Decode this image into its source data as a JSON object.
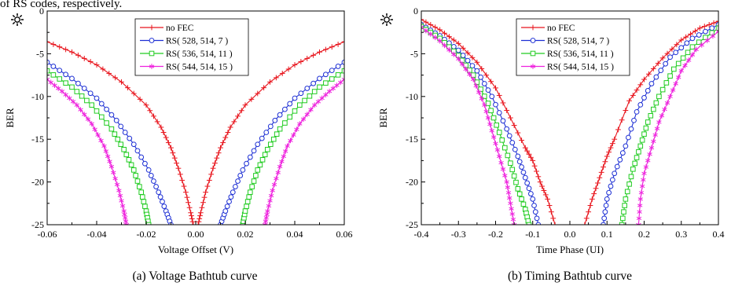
{
  "top_text": "of RS codes, respectively.",
  "chart_data": [
    {
      "type": "line",
      "caption": "(a)   Voltage Bathtub curve",
      "xlabel": "Voltage Offset (V)",
      "ylabel": "BER",
      "xlim": [
        -0.06,
        0.06
      ],
      "ylim": [
        -25,
        0
      ],
      "xticks": [
        "-0.06",
        "-0.04",
        "-0.02",
        "0.00",
        "0.02",
        "0.04",
        "0.06"
      ],
      "xtick_values": [
        -0.06,
        -0.04,
        -0.02,
        0.0,
        0.02,
        0.04,
        0.06
      ],
      "yticks": [
        "0",
        "-5",
        "-10",
        "-15",
        "-20",
        "-25"
      ],
      "ytick_values": [
        0,
        -5,
        -10,
        -15,
        -20,
        -25
      ],
      "grid": false,
      "legend_position": "top-center",
      "series": [
        {
          "name": "no FEC",
          "color": "#e8141c",
          "marker": "plus",
          "left": [
            [
              -0.06,
              -3.6
            ],
            [
              -0.05,
              -4.8
            ],
            [
              -0.04,
              -6.3
            ],
            [
              -0.03,
              -8.3
            ],
            [
              -0.02,
              -11.0
            ],
            [
              -0.014,
              -13.6
            ],
            [
              -0.01,
              -16.0
            ],
            [
              -0.007,
              -18.4
            ],
            [
              -0.004,
              -21.2
            ],
            [
              -0.002,
              -23.6
            ],
            [
              -0.001,
              -25.0
            ]
          ],
          "right": [
            [
              0.001,
              -25.0
            ],
            [
              0.002,
              -23.6
            ],
            [
              0.004,
              -21.2
            ],
            [
              0.007,
              -18.4
            ],
            [
              0.01,
              -16.0
            ],
            [
              0.014,
              -13.6
            ],
            [
              0.02,
              -11.0
            ],
            [
              0.03,
              -8.3
            ],
            [
              0.04,
              -6.3
            ],
            [
              0.05,
              -4.8
            ],
            [
              0.06,
              -3.6
            ]
          ]
        },
        {
          "name": "RS( 528, 514, 7 )",
          "color": "#1d2fd4",
          "marker": "circle",
          "left": [
            [
              -0.06,
              -6.0
            ],
            [
              -0.05,
              -7.9
            ],
            [
              -0.04,
              -10.2
            ],
            [
              -0.032,
              -12.8
            ],
            [
              -0.025,
              -15.6
            ],
            [
              -0.019,
              -18.6
            ],
            [
              -0.015,
              -21.2
            ],
            [
              -0.012,
              -23.4
            ],
            [
              -0.01,
              -25.0
            ]
          ],
          "right": [
            [
              0.01,
              -25.0
            ],
            [
              0.012,
              -23.4
            ],
            [
              0.015,
              -21.2
            ],
            [
              0.019,
              -18.6
            ],
            [
              0.025,
              -15.6
            ],
            [
              0.032,
              -12.8
            ],
            [
              0.04,
              -10.2
            ],
            [
              0.05,
              -7.9
            ],
            [
              0.06,
              -6.0
            ]
          ]
        },
        {
          "name": "RS( 536, 514, 11 )",
          "color": "#22cc22",
          "marker": "square",
          "left": [
            [
              -0.06,
              -7.0
            ],
            [
              -0.05,
              -8.9
            ],
            [
              -0.042,
              -11.0
            ],
            [
              -0.034,
              -13.8
            ],
            [
              -0.029,
              -16.2
            ],
            [
              -0.025,
              -18.6
            ],
            [
              -0.022,
              -21.2
            ],
            [
              -0.02,
              -23.4
            ],
            [
              -0.019,
              -25.0
            ]
          ],
          "right": [
            [
              0.019,
              -25.0
            ],
            [
              0.02,
              -23.4
            ],
            [
              0.022,
              -21.2
            ],
            [
              0.025,
              -18.6
            ],
            [
              0.029,
              -16.2
            ],
            [
              0.034,
              -13.8
            ],
            [
              0.042,
              -11.0
            ],
            [
              0.05,
              -8.9
            ],
            [
              0.06,
              -7.0
            ]
          ]
        },
        {
          "name": "RS( 544, 514, 15 )",
          "color": "#ee22dd",
          "marker": "star",
          "left": [
            [
              -0.06,
              -8.0
            ],
            [
              -0.054,
              -9.4
            ],
            [
              -0.048,
              -11.0
            ],
            [
              -0.042,
              -13.2
            ],
            [
              -0.037,
              -15.8
            ],
            [
              -0.034,
              -18.2
            ],
            [
              -0.031,
              -21.0
            ],
            [
              -0.029,
              -23.4
            ],
            [
              -0.028,
              -25.0
            ]
          ],
          "right": [
            [
              0.028,
              -25.0
            ],
            [
              0.029,
              -23.4
            ],
            [
              0.031,
              -21.0
            ],
            [
              0.034,
              -18.2
            ],
            [
              0.037,
              -15.8
            ],
            [
              0.042,
              -13.2
            ],
            [
              0.048,
              -11.0
            ],
            [
              0.054,
              -9.4
            ],
            [
              0.06,
              -8.0
            ]
          ]
        }
      ]
    },
    {
      "type": "line",
      "caption": "(b)   Timing Bathtub curve",
      "xlabel": "Time Phase  (UI)",
      "ylabel": "BER",
      "xlim": [
        -0.4,
        0.4
      ],
      "ylim": [
        -25,
        0
      ],
      "xticks": [
        "-0.4",
        "-0.3",
        "-0.2",
        "-0.1",
        "0.0",
        "0.1",
        "0.2",
        "0.3",
        "0.4"
      ],
      "xtick_values": [
        -0.4,
        -0.3,
        -0.2,
        -0.1,
        0.0,
        0.1,
        0.2,
        0.3,
        0.4
      ],
      "yticks": [
        "0",
        "-5",
        "-10",
        "-15",
        "-20",
        "-25"
      ],
      "ytick_values": [
        0,
        -5,
        -10,
        -15,
        -20,
        -25
      ],
      "grid": false,
      "legend_position": "top-center",
      "series": [
        {
          "name": "no FEC",
          "color": "#e8141c",
          "marker": "plus",
          "left": [
            [
              -0.4,
              -1.0
            ],
            [
              -0.35,
              -2.2
            ],
            [
              -0.3,
              -3.8
            ],
            [
              -0.25,
              -6.0
            ],
            [
              -0.2,
              -9.0
            ],
            [
              -0.16,
              -12.5
            ],
            [
              -0.12,
              -16.0
            ],
            [
              -0.1,
              -17.5
            ],
            [
              -0.08,
              -20.0
            ],
            [
              -0.06,
              -22.0
            ],
            [
              -0.04,
              -25.0
            ]
          ],
          "right": [
            [
              0.04,
              -25.0
            ],
            [
              0.06,
              -22.0
            ],
            [
              0.08,
              -19.5
            ],
            [
              0.1,
              -17.0
            ],
            [
              0.12,
              -15.0
            ],
            [
              0.16,
              -10.5
            ],
            [
              0.2,
              -8.0
            ],
            [
              0.25,
              -5.5
            ],
            [
              0.3,
              -3.4
            ],
            [
              0.35,
              -2.0
            ],
            [
              0.4,
              -1.2
            ]
          ]
        },
        {
          "name": "RS( 528, 514, 7 )",
          "color": "#1d2fd4",
          "marker": "circle",
          "left": [
            [
              -0.4,
              -1.6
            ],
            [
              -0.35,
              -2.9
            ],
            [
              -0.3,
              -4.6
            ],
            [
              -0.25,
              -7.0
            ],
            [
              -0.21,
              -10.0
            ],
            [
              -0.17,
              -13.8
            ],
            [
              -0.14,
              -17.0
            ],
            [
              -0.12,
              -19.5
            ],
            [
              -0.1,
              -22.0
            ],
            [
              -0.085,
              -25.0
            ]
          ],
          "right": [
            [
              0.09,
              -25.0
            ],
            [
              0.1,
              -22.0
            ],
            [
              0.12,
              -19.0
            ],
            [
              0.15,
              -15.8
            ],
            [
              0.18,
              -11.8
            ],
            [
              0.22,
              -8.5
            ],
            [
              0.27,
              -5.4
            ],
            [
              0.33,
              -3.2
            ],
            [
              0.4,
              -1.6
            ]
          ]
        },
        {
          "name": "RS( 536, 514, 11 )",
          "color": "#22cc22",
          "marker": "square",
          "left": [
            [
              -0.4,
              -1.8
            ],
            [
              -0.35,
              -3.2
            ],
            [
              -0.3,
              -5.2
            ],
            [
              -0.26,
              -7.5
            ],
            [
              -0.22,
              -10.8
            ],
            [
              -0.19,
              -14.2
            ],
            [
              -0.16,
              -17.8
            ],
            [
              -0.14,
              -20.8
            ],
            [
              -0.12,
              -23.2
            ],
            [
              -0.11,
              -25.0
            ]
          ],
          "right": [
            [
              0.14,
              -25.0
            ],
            [
              0.15,
              -22.0
            ],
            [
              0.17,
              -18.5
            ],
            [
              0.19,
              -15.8
            ],
            [
              0.21,
              -13.0
            ],
            [
              0.24,
              -10.0
            ],
            [
              0.28,
              -6.8
            ],
            [
              0.33,
              -4.2
            ],
            [
              0.4,
              -2.0
            ]
          ]
        },
        {
          "name": "RS( 544, 514, 15 )",
          "color": "#ee22dd",
          "marker": "star",
          "left": [
            [
              -0.4,
              -1.9
            ],
            [
              -0.35,
              -3.5
            ],
            [
              -0.3,
              -5.6
            ],
            [
              -0.26,
              -8.0
            ],
            [
              -0.23,
              -11.0
            ],
            [
              -0.21,
              -14.0
            ],
            [
              -0.19,
              -17.0
            ],
            [
              -0.17,
              -20.0
            ],
            [
              -0.16,
              -22.5
            ],
            [
              -0.15,
              -25.0
            ]
          ],
          "right": [
            [
              0.185,
              -25.0
            ],
            [
              0.19,
              -22.0
            ],
            [
              0.2,
              -19.0
            ],
            [
              0.22,
              -16.0
            ],
            [
              0.24,
              -13.0
            ],
            [
              0.27,
              -10.0
            ],
            [
              0.3,
              -7.0
            ],
            [
              0.34,
              -4.5
            ],
            [
              0.4,
              -2.4
            ]
          ]
        }
      ]
    }
  ]
}
